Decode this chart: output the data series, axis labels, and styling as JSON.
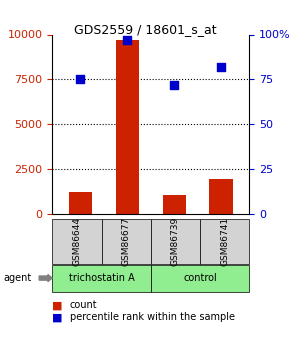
{
  "title": "GDS2559 / 18601_s_at",
  "samples": [
    "GSM86644",
    "GSM86677",
    "GSM86739",
    "GSM86741"
  ],
  "counts": [
    1200,
    9700,
    1050,
    1950
  ],
  "percentiles": [
    75,
    97,
    72,
    82
  ],
  "groups": [
    "trichostatin A",
    "trichostatin A",
    "control",
    "control"
  ],
  "group_colors": {
    "trichostatin A": "#90EE90",
    "control": "#90EE90"
  },
  "bar_color": "#CC2200",
  "dot_color": "#0000CC",
  "left_yticks": [
    0,
    2500,
    5000,
    7500,
    10000
  ],
  "right_yticks": [
    0,
    25,
    50,
    75,
    100
  ],
  "ylim_left": [
    0,
    10000
  ],
  "ylim_right": [
    0,
    100
  ],
  "title_color_left": "#CC2200",
  "title_color_right": "#0000CC",
  "bg_color": "#FFFFFF",
  "plot_bg": "#FFFFFF",
  "sample_box_color": "#D3D3D3",
  "legend_count_color": "#CC2200",
  "legend_pct_color": "#0000CC"
}
